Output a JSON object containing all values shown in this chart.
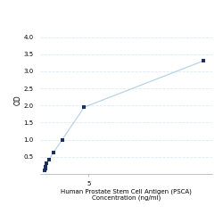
{
  "x_values": [
    0,
    0.0625,
    0.125,
    0.25,
    0.5,
    1.0,
    2.0,
    4.5,
    18.0
  ],
  "y_values": [
    0.1,
    0.15,
    0.2,
    0.3,
    0.42,
    0.62,
    1.0,
    1.95,
    3.3
  ],
  "line_color": "#b8d4e8",
  "marker_color": "#1a3060",
  "marker_style": "s",
  "marker_size": 3,
  "xlabel_line1": "Human Prostate Stem Cell Antigen (PSCA)",
  "xlabel_line2": "Concentration (ng/ml)",
  "ylabel": "OD",
  "xlim": [
    -0.5,
    19
  ],
  "ylim": [
    0,
    4.3
  ],
  "yticks": [
    0.5,
    1.0,
    1.5,
    2.0,
    2.5,
    3.0,
    3.5,
    4.0
  ],
  "xtick_positions": [
    5
  ],
  "xtick_labels": [
    "5"
  ],
  "grid_color": "#ddeaf5",
  "background_color": "#ffffff",
  "tick_fontsize": 5,
  "label_fontsize": 5,
  "ylabel_fontsize": 5.5
}
